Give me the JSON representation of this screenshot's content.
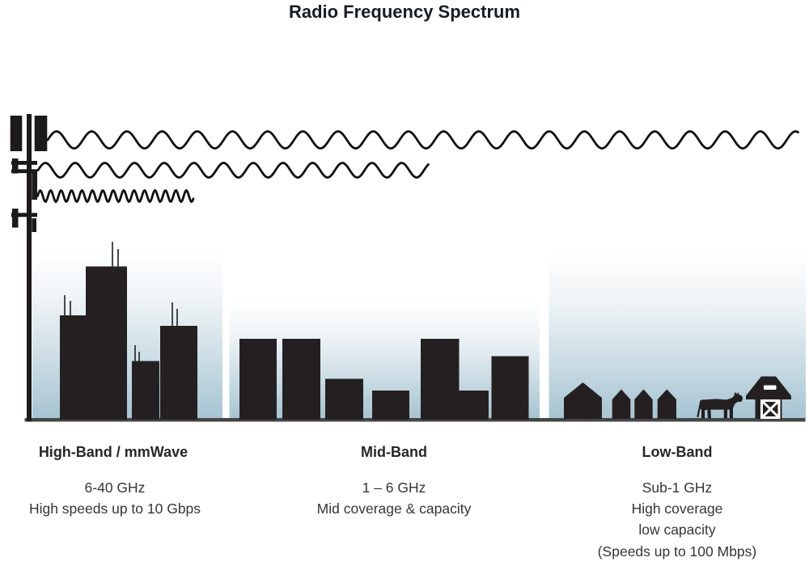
{
  "title": "Radio Frequency Spectrum",
  "bands": {
    "high": {
      "label": "High-Band / mmWave",
      "lines": [
        "6-40 GHz",
        "High speeds up to 10 Gbps"
      ]
    },
    "mid": {
      "label": "Mid-Band",
      "lines": [
        "1 – 6 GHz",
        "Mid coverage & capacity"
      ]
    },
    "low": {
      "label": "Low-Band",
      "lines": [
        "Sub-1 GHz",
        "High coverage",
        "low capacity",
        "(Speeds up to 100 Mbps)"
      ]
    }
  },
  "icons": {
    "tower": "cell-tower-icon",
    "waves": [
      "low-band-wave-icon",
      "mid-band-wave-icon",
      "high-band-wave-icon"
    ],
    "high_scene": "skyscraper-icons",
    "mid_scene": "midrise-building-icons",
    "low_scene": [
      "house-icon",
      "cow-icon",
      "barn-icon"
    ]
  },
  "colors": {
    "silhouette": "#242021",
    "sky_bottom": "#a6c4d2",
    "text": "#383435",
    "heading": "#29262a",
    "title": "#181c24",
    "ground": "#454545"
  }
}
